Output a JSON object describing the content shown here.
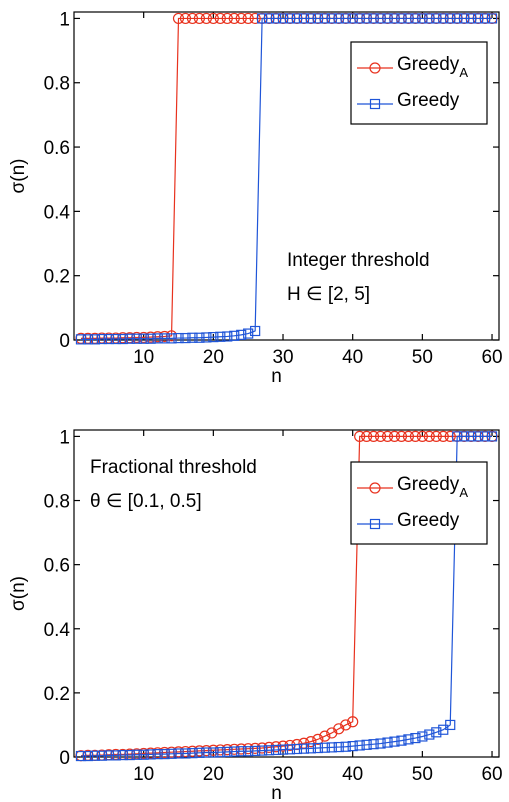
{
  "chart_data": [
    {
      "type": "line",
      "xlabel": "n",
      "ylabel": "σ(n)",
      "xlim": [
        0,
        61
      ],
      "ylim": [
        0,
        1.02
      ],
      "xticks": [
        10,
        20,
        30,
        40,
        50,
        60
      ],
      "xtick_labels": [
        "10",
        "20",
        "30",
        "40",
        "50",
        "60"
      ],
      "yticks": [
        0,
        0.2,
        0.4,
        0.6,
        0.8,
        1
      ],
      "ytick_labels": [
        "0",
        "0.2",
        "0.4",
        "0.6",
        "0.8",
        "1"
      ],
      "grid": false,
      "legend_position": "top-right",
      "annotation": [
        "Integer threshold",
        "H ∈ [2, 5]"
      ],
      "series": [
        {
          "name": "Greedy",
          "name_sub": "A",
          "color": "#e8321e",
          "marker": "circle",
          "x": [
            1,
            2,
            3,
            4,
            5,
            6,
            7,
            8,
            9,
            10,
            11,
            12,
            13,
            14,
            15,
            16,
            17,
            18,
            19,
            20,
            21,
            22,
            23,
            24,
            25,
            26,
            27,
            28,
            29,
            30,
            31,
            32,
            33,
            34,
            35,
            36,
            37,
            38,
            39,
            40,
            41,
            42,
            43,
            44,
            45,
            46,
            47,
            48,
            49,
            50,
            51,
            52,
            53,
            54,
            55,
            56,
            57,
            58,
            59,
            60
          ],
          "y": [
            0.005,
            0.005,
            0.005,
            0.006,
            0.006,
            0.006,
            0.007,
            0.007,
            0.008,
            0.008,
            0.009,
            0.01,
            0.011,
            0.013,
            1,
            1,
            1,
            1,
            1,
            1,
            1,
            1,
            1,
            1,
            1,
            1,
            1,
            1,
            1,
            1,
            1,
            1,
            1,
            1,
            1,
            1,
            1,
            1,
            1,
            1,
            1,
            1,
            1,
            1,
            1,
            1,
            1,
            1,
            1,
            1,
            1,
            1,
            1,
            1,
            1,
            1,
            1,
            1,
            1,
            1
          ]
        },
        {
          "name": "Greedy",
          "name_sub": "",
          "color": "#1f55d8",
          "marker": "square",
          "x": [
            1,
            2,
            3,
            4,
            5,
            6,
            7,
            8,
            9,
            10,
            11,
            12,
            13,
            14,
            15,
            16,
            17,
            18,
            19,
            20,
            21,
            22,
            23,
            24,
            25,
            26,
            27,
            28,
            29,
            30,
            31,
            32,
            33,
            34,
            35,
            36,
            37,
            38,
            39,
            40,
            41,
            42,
            43,
            44,
            45,
            46,
            47,
            48,
            49,
            50,
            51,
            52,
            53,
            54,
            55,
            56,
            57,
            58,
            59,
            60
          ],
          "y": [
            0.002,
            0.002,
            0.002,
            0.003,
            0.003,
            0.003,
            0.003,
            0.004,
            0.004,
            0.004,
            0.004,
            0.005,
            0.005,
            0.005,
            0.006,
            0.006,
            0.007,
            0.007,
            0.008,
            0.009,
            0.01,
            0.011,
            0.013,
            0.016,
            0.02,
            0.028,
            1,
            1,
            1,
            1,
            1,
            1,
            1,
            1,
            1,
            1,
            1,
            1,
            1,
            1,
            1,
            1,
            1,
            1,
            1,
            1,
            1,
            1,
            1,
            1,
            1,
            1,
            1,
            1,
            1,
            1,
            1,
            1,
            1,
            1
          ]
        }
      ]
    },
    {
      "type": "line",
      "xlabel": "n",
      "ylabel": "σ(n)",
      "xlim": [
        0,
        61
      ],
      "ylim": [
        0,
        1.02
      ],
      "xticks": [
        10,
        20,
        30,
        40,
        50,
        60
      ],
      "xtick_labels": [
        "10",
        "20",
        "30",
        "40",
        "50",
        "60"
      ],
      "yticks": [
        0,
        0.2,
        0.4,
        0.6,
        0.8,
        1
      ],
      "ytick_labels": [
        "0",
        "0.2",
        "0.4",
        "0.6",
        "0.8",
        "1"
      ],
      "grid": false,
      "legend_position": "top-right",
      "annotation": [
        "Fractional threshold",
        "θ ∈ [0.1, 0.5]"
      ],
      "series": [
        {
          "name": "Greedy",
          "name_sub": "A",
          "color": "#e8321e",
          "marker": "circle",
          "x": [
            1,
            2,
            3,
            4,
            5,
            6,
            7,
            8,
            9,
            10,
            11,
            12,
            13,
            14,
            15,
            16,
            17,
            18,
            19,
            20,
            21,
            22,
            23,
            24,
            25,
            26,
            27,
            28,
            29,
            30,
            31,
            32,
            33,
            34,
            35,
            36,
            37,
            38,
            39,
            40,
            41,
            42,
            43,
            44,
            45,
            46,
            47,
            48,
            49,
            50,
            51,
            52,
            53,
            54,
            55,
            56,
            57,
            58,
            59,
            60
          ],
          "y": [
            0.004,
            0.005,
            0.005,
            0.006,
            0.007,
            0.008,
            0.008,
            0.009,
            0.01,
            0.011,
            0.012,
            0.013,
            0.014,
            0.015,
            0.016,
            0.017,
            0.018,
            0.019,
            0.02,
            0.021,
            0.022,
            0.023,
            0.024,
            0.025,
            0.026,
            0.027,
            0.028,
            0.03,
            0.032,
            0.034,
            0.036,
            0.039,
            0.043,
            0.048,
            0.055,
            0.065,
            0.075,
            0.088,
            0.1,
            0.11,
            1,
            1,
            1,
            1,
            1,
            1,
            1,
            1,
            1,
            1,
            1,
            1,
            1,
            1,
            1,
            1,
            1,
            1,
            1,
            1
          ]
        },
        {
          "name": "Greedy",
          "name_sub": "",
          "color": "#1f55d8",
          "marker": "square",
          "x": [
            1,
            2,
            3,
            4,
            5,
            6,
            7,
            8,
            9,
            10,
            11,
            12,
            13,
            14,
            15,
            16,
            17,
            18,
            19,
            20,
            21,
            22,
            23,
            24,
            25,
            26,
            27,
            28,
            29,
            30,
            31,
            32,
            33,
            34,
            35,
            36,
            37,
            38,
            39,
            40,
            41,
            42,
            43,
            44,
            45,
            46,
            47,
            48,
            49,
            50,
            51,
            52,
            53,
            54,
            55,
            56,
            57,
            58,
            59,
            60
          ],
          "y": [
            0.003,
            0.003,
            0.004,
            0.004,
            0.005,
            0.005,
            0.006,
            0.006,
            0.007,
            0.007,
            0.008,
            0.009,
            0.009,
            0.01,
            0.011,
            0.011,
            0.012,
            0.013,
            0.014,
            0.014,
            0.015,
            0.016,
            0.017,
            0.018,
            0.018,
            0.019,
            0.02,
            0.021,
            0.022,
            0.023,
            0.024,
            0.025,
            0.026,
            0.027,
            0.028,
            0.029,
            0.03,
            0.031,
            0.032,
            0.034,
            0.036,
            0.038,
            0.04,
            0.042,
            0.045,
            0.048,
            0.051,
            0.055,
            0.059,
            0.064,
            0.07,
            0.077,
            0.085,
            0.1,
            1,
            1,
            1,
            1,
            1,
            1
          ]
        }
      ]
    }
  ]
}
